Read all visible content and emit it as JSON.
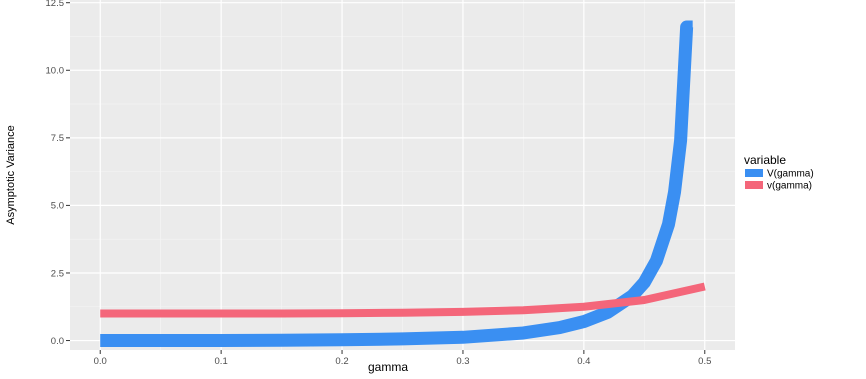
{
  "chart_data": {
    "type": "line",
    "xlabel": "gamma",
    "ylabel": "Asymptotic Variance",
    "xlim": [
      -0.025,
      0.525
    ],
    "ylim": [
      -0.35,
      12.6
    ],
    "x_ticks": [
      0.0,
      0.1,
      0.2,
      0.3,
      0.4,
      0.5
    ],
    "x_tick_labels": [
      "0.0",
      "0.1",
      "0.2",
      "0.3",
      "0.4",
      "0.5"
    ],
    "y_ticks": [
      0.0,
      2.5,
      5.0,
      7.5,
      10.0,
      12.5
    ],
    "y_tick_labels": [
      "0.0",
      "2.5",
      "5.0",
      "7.5",
      "10.0",
      "12.5"
    ],
    "grid": true,
    "legend": {
      "title": "variable",
      "placement": "right"
    },
    "series": [
      {
        "name": "V(gamma)",
        "color": "#3a8ff2",
        "x": [
          0.0,
          0.05,
          0.1,
          0.15,
          0.2,
          0.25,
          0.3,
          0.35,
          0.38,
          0.4,
          0.42,
          0.44,
          0.45,
          0.46,
          0.47,
          0.475,
          0.48,
          0.485,
          0.49
        ],
        "y": [
          0.0,
          0.0,
          0.0,
          0.01,
          0.03,
          0.06,
          0.12,
          0.28,
          0.48,
          0.7,
          1.05,
          1.65,
          2.15,
          2.95,
          4.3,
          5.5,
          7.4,
          11.6,
          11.6
        ]
      },
      {
        "name": "v(gamma)",
        "color": "#f4667a",
        "x": [
          0.0,
          0.05,
          0.1,
          0.15,
          0.2,
          0.25,
          0.3,
          0.35,
          0.4,
          0.45,
          0.5
        ],
        "y": [
          1.0,
          1.0,
          1.0,
          1.0,
          1.01,
          1.03,
          1.06,
          1.12,
          1.25,
          1.5,
          2.0
        ]
      }
    ]
  }
}
